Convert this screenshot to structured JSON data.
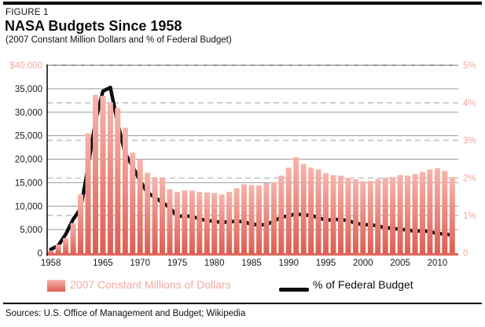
{
  "header": {
    "kicker": "FIGURE 1",
    "title": "NASA Budgets Since 1958",
    "subtitle": "(2007 Constant Million Dollars and % of Federal Budget)"
  },
  "legend": {
    "bars_label": "2007 Constant Millions of Dollars",
    "line_label": "% of Federal Budget"
  },
  "source_line": "Sources: U.S. Office of Management and Budget; Wikipedia",
  "colors": {
    "bar_top": "#f6b5ad",
    "bar_bottom": "#dd5e52",
    "baseline": "#e2685c",
    "pink_label": "#f4a8a2",
    "grid_solid": "#9a9a9a",
    "grid_dashed": "#c4c4c4",
    "line": "#0d0d0d",
    "text": "#1a1a1a"
  },
  "chart_data": {
    "type": "bar",
    "subtype": "bar+line combo, dual axis",
    "title": "NASA Budgets Since 1958",
    "subtitle": "(2007 Constant Million Dollars and % of Federal Budget)",
    "x": [
      1958,
      1959,
      1960,
      1961,
      1962,
      1963,
      1964,
      1965,
      1966,
      1967,
      1968,
      1969,
      1970,
      1971,
      1972,
      1973,
      1974,
      1975,
      1976,
      1977,
      1978,
      1979,
      1980,
      1981,
      1982,
      1983,
      1984,
      1985,
      1986,
      1987,
      1988,
      1989,
      1990,
      1991,
      1992,
      1993,
      1994,
      1995,
      1996,
      1997,
      1998,
      1999,
      2000,
      2001,
      2002,
      2003,
      2004,
      2005,
      2006,
      2007,
      2008,
      2009,
      2010,
      2011,
      2012
    ],
    "series": [
      {
        "name": "2007 Constant Millions of Dollars",
        "type": "bar",
        "axis": "left",
        "values": [
          500,
          1800,
          3200,
          6400,
          12500,
          25500,
          33700,
          33500,
          32100,
          30900,
          26700,
          21400,
          20000,
          17100,
          16100,
          16100,
          13600,
          13000,
          13350,
          13300,
          13000,
          12900,
          12800,
          12500,
          13050,
          13800,
          14650,
          14500,
          14400,
          14900,
          15100,
          16500,
          18200,
          20400,
          19000,
          18200,
          17800,
          17000,
          16600,
          16500,
          16050,
          15700,
          15300,
          15400,
          15750,
          16050,
          16200,
          16600,
          16500,
          16850,
          17300,
          17800,
          18100,
          17500,
          16200
        ]
      },
      {
        "name": "% of Federal Budget",
        "type": "line",
        "axis": "right",
        "values": [
          0.1,
          0.2,
          0.5,
          0.9,
          1.18,
          2.29,
          3.52,
          4.31,
          4.41,
          3.45,
          2.65,
          2.31,
          1.92,
          1.61,
          1.48,
          1.35,
          1.21,
          0.98,
          0.99,
          0.98,
          0.91,
          0.87,
          0.84,
          0.82,
          0.83,
          0.85,
          0.83,
          0.77,
          0.75,
          0.76,
          0.85,
          0.96,
          0.99,
          1.05,
          1.01,
          1.01,
          0.94,
          0.88,
          0.89,
          0.9,
          0.86,
          0.8,
          0.75,
          0.76,
          0.72,
          0.68,
          0.66,
          0.63,
          0.62,
          0.58,
          0.6,
          0.57,
          0.52,
          0.51,
          0.48
        ]
      }
    ],
    "left_axis": {
      "min": 0,
      "max": 40000,
      "tick_values": [
        40000,
        35000,
        30000,
        25000,
        20000,
        15000,
        10000,
        5000,
        0
      ],
      "tick_labels": [
        "$40,000",
        "35,000",
        "30,000",
        "25,000",
        "20,000",
        "15,000",
        "10,000",
        "5,000",
        "0"
      ]
    },
    "right_axis": {
      "min": 0,
      "max": 5,
      "tick_values": [
        5,
        4,
        3,
        2,
        1,
        0
      ],
      "tick_labels": [
        "5%",
        "4%",
        "3%",
        "2%",
        "1%",
        "0"
      ]
    },
    "x_ticks": [
      1958,
      1965,
      1970,
      1975,
      1980,
      1985,
      1990,
      1995,
      2000,
      2005,
      2010
    ],
    "grid": {
      "solid_lines_left_axis_every": 5000,
      "dashed_lines_right_axis_every_percent": 1,
      "grid_on": true
    },
    "legend_position": "bottom"
  }
}
